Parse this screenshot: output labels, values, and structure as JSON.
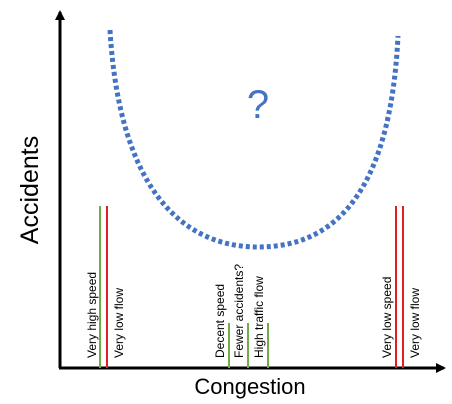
{
  "axes": {
    "y_label": "Accidents",
    "x_label": "Congestion"
  },
  "curve_label": "?",
  "annotations": [
    {
      "labels": [
        "Very high speed",
        "Very low flow"
      ]
    },
    {
      "labels": [
        "Decent speed",
        "Fewer accidents?",
        "High traffic flow"
      ]
    },
    {
      "labels": [
        "Very low speed",
        "Very low flow"
      ]
    }
  ]
}
